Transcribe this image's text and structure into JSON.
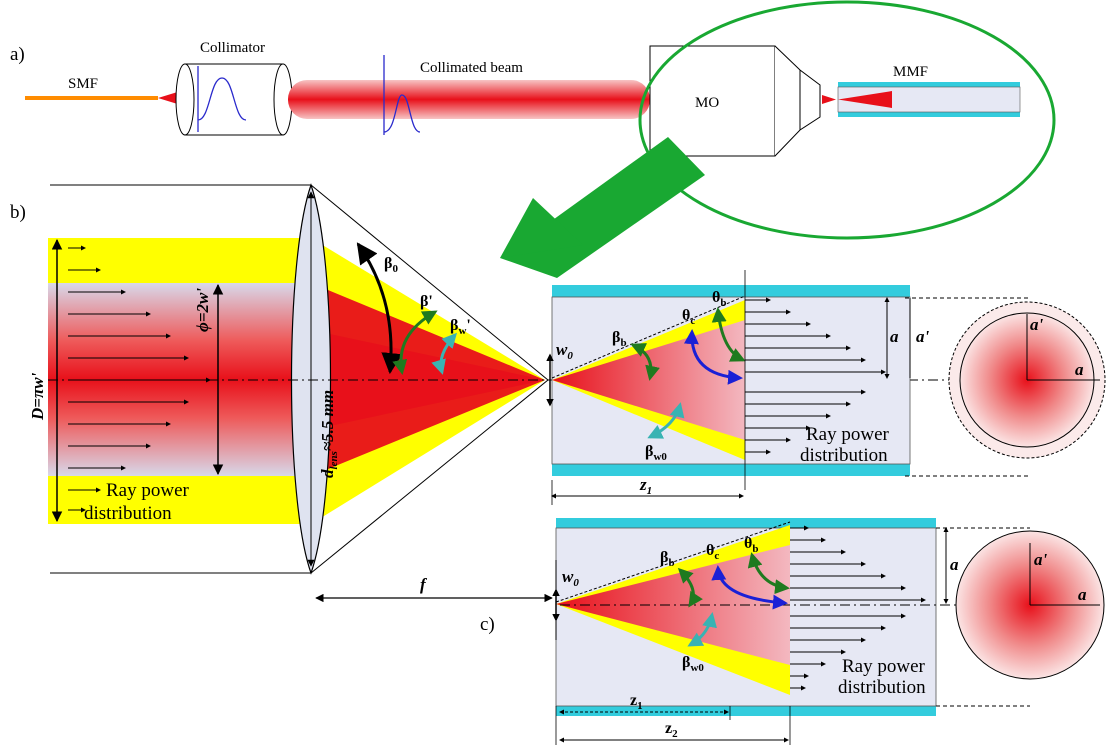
{
  "panel_a": {
    "letter": "a)",
    "smf": "SMF",
    "collimator": "Collimator",
    "beam": "Collimated beam",
    "mo": "MO",
    "mmf": "MMF"
  },
  "panel_b": {
    "letter": "b)",
    "d_big": "D=πw'",
    "phi": "ϕ=2w'",
    "lens_d": "d",
    "lens_d_sub": "lens",
    "lens_d_rest": "≈5.5 mm",
    "beta0": "β",
    "beta0_sub": "0",
    "beta_prime": "β'",
    "beta_w": "β",
    "beta_w_sub": "w",
    "beta_w_prime": "'",
    "ray_power_left_1": "Ray power",
    "ray_power_left_2": "distribution",
    "focal": "f",
    "w0": "w",
    "w0_sub": "0",
    "beta_b": "β",
    "beta_b_sub": "b",
    "theta_c": "θ",
    "theta_c_sub": "c",
    "theta_b": "θ",
    "theta_b_sub": "b",
    "beta_w0": "β",
    "beta_w0_sub": "w0",
    "a": "a",
    "a_prime": "a'",
    "ray_power_right_1": "Ray power",
    "ray_power_right_2": "distribution",
    "z1": "z",
    "z1_sub": "1"
  },
  "panel_c": {
    "letter": "c)",
    "w0": "w",
    "w0_sub": "0",
    "beta_b": "β",
    "beta_b_sub": "b",
    "theta_c": "θ",
    "theta_c_sub": "c",
    "theta_b": "θ",
    "theta_b_sub": "b",
    "beta_w0": "β",
    "beta_w0_sub": "w0",
    "a": "a",
    "a_prime": "a'",
    "ray_power_1": "Ray power",
    "ray_power_2": "distribution",
    "z1": "z",
    "z1_sub": "1",
    "z2": "z",
    "z2_sub": "2"
  },
  "colors": {
    "beam": "#e8101a",
    "yellow": "#ffff00",
    "cladding": "#33ccdd",
    "core": "#e6e8f4",
    "green_arrow": "#19a832",
    "dark_green": "#1f7a1f",
    "teal": "#39b3b3",
    "blue": "#1a20d6",
    "orange": "#ff8c00",
    "gauss": "#2a2acc"
  }
}
